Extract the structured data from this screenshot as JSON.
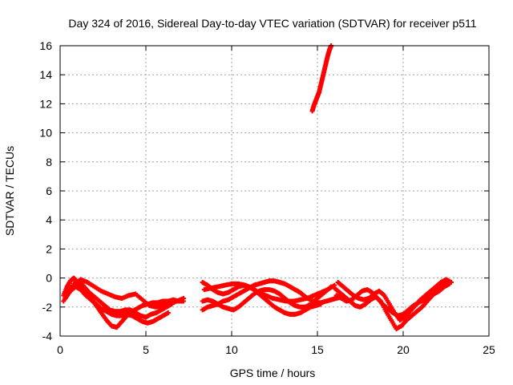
{
  "chart_data": {
    "type": "scatter",
    "title": "Day 324 of 2016, Sidereal Day-to-day VTEC variation (SDTVAR) for receiver p511",
    "xlabel": "GPS time / hours",
    "ylabel": "SDTVAR / TECUs",
    "xlim": [
      0,
      25
    ],
    "ylim": [
      -4,
      16
    ],
    "xticks": [
      "0",
      "5",
      "10",
      "15",
      "20",
      "25"
    ],
    "yticks": [
      "-4",
      "-2",
      "0",
      "2",
      "4",
      "6",
      "8",
      "10",
      "12",
      "14",
      "16"
    ],
    "grid": true,
    "marker_color": "#ff0000",
    "marker": "+",
    "series": [
      {
        "name": "",
        "x": [
          0.2,
          0.4,
          0.6,
          0.8,
          1.0,
          1.2,
          1.5,
          1.8,
          2.1,
          2.4,
          2.7,
          3.0,
          3.3,
          3.6,
          3.9,
          4.2,
          4.5,
          4.8,
          5.1,
          5.4,
          5.7,
          6.0,
          6.3,
          6.6,
          6.9,
          7.2
        ],
        "y": [
          -1.2,
          -0.6,
          -0.2,
          0.0,
          -0.3,
          -0.6,
          -0.9,
          -1.4,
          -1.9,
          -2.4,
          -2.9,
          -3.3,
          -3.4,
          -3.0,
          -2.6,
          -2.3,
          -2.1,
          -1.9,
          -1.8,
          -1.7,
          -1.7,
          -1.6,
          -1.6,
          -1.5,
          -1.6,
          -1.6
        ]
      },
      {
        "name": "",
        "x": [
          0.2,
          0.5,
          0.8,
          1.1,
          1.4,
          1.7,
          2.0,
          2.3,
          2.6,
          2.9,
          3.2,
          3.5,
          3.8,
          4.1,
          4.4,
          4.7,
          5.0,
          5.3,
          5.6,
          5.9,
          6.2,
          6.5
        ],
        "y": [
          -1.6,
          -1.0,
          -0.5,
          -0.2,
          -0.6,
          -1.0,
          -1.3,
          -1.6,
          -1.9,
          -2.2,
          -2.3,
          -2.3,
          -2.2,
          -2.2,
          -2.4,
          -2.6,
          -2.7,
          -2.5,
          -2.4,
          -2.2,
          -2.0,
          -1.8
        ]
      },
      {
        "name": "",
        "x": [
          0.3,
          0.6,
          0.9,
          1.2,
          1.5,
          1.8,
          2.1,
          2.4,
          2.7,
          3.0,
          3.3,
          3.6,
          3.9,
          4.2,
          4.5,
          4.8,
          5.1,
          5.4,
          5.7,
          6.0,
          6.3
        ],
        "y": [
          -1.4,
          -0.9,
          -0.6,
          -0.8,
          -1.2,
          -1.5,
          -1.8,
          -2.1,
          -2.3,
          -2.5,
          -2.6,
          -2.6,
          -2.5,
          -2.6,
          -2.8,
          -3.0,
          -3.1,
          -3.0,
          -2.8,
          -2.6,
          -2.4
        ]
      },
      {
        "name": "",
        "x": [
          0.4,
          0.8,
          1.2,
          1.6,
          2.0,
          2.4,
          2.8,
          3.2,
          3.6,
          4.0,
          4.4,
          4.8,
          5.2,
          5.6,
          6.0,
          6.4,
          6.8,
          7.2
        ],
        "y": [
          -1.0,
          -0.4,
          -0.1,
          -0.3,
          -0.6,
          -0.9,
          -1.1,
          -1.3,
          -1.4,
          -1.2,
          -1.1,
          -1.5,
          -1.9,
          -2.0,
          -1.9,
          -1.8,
          -1.6,
          -1.4
        ]
      },
      {
        "name": "",
        "x": [
          8.3,
          8.6,
          8.9,
          9.2,
          9.5,
          9.8,
          10.1,
          10.4,
          10.7,
          11.0,
          11.3,
          11.6,
          11.9,
          12.2,
          12.5,
          12.8,
          13.1,
          13.4,
          13.7,
          14.0,
          14.3,
          14.6,
          14.9,
          15.2,
          15.5,
          15.8,
          16.1,
          16.4
        ],
        "y": [
          -2.2,
          -2.0,
          -1.9,
          -1.8,
          -1.6,
          -1.5,
          -1.3,
          -1.1,
          -0.9,
          -0.7,
          -0.5,
          -0.4,
          -0.3,
          -0.2,
          -0.2,
          -0.3,
          -0.4,
          -0.6,
          -0.8,
          -1.0,
          -1.3,
          -1.5,
          -1.7,
          -1.7,
          -1.6,
          -1.5,
          -1.4,
          -1.3
        ]
      },
      {
        "name": "",
        "x": [
          8.3,
          8.6,
          8.9,
          9.2,
          9.5,
          9.8,
          10.1,
          10.4,
          10.7,
          11.0,
          11.3,
          11.6,
          11.9,
          12.2,
          12.5,
          12.8,
          13.1,
          13.4,
          13.7,
          14.0,
          14.3,
          14.6,
          14.9,
          15.2,
          15.5,
          15.8
        ],
        "y": [
          -1.6,
          -1.5,
          -1.6,
          -1.8,
          -2.0,
          -2.1,
          -2.2,
          -2.0,
          -1.7,
          -1.4,
          -1.1,
          -0.9,
          -0.8,
          -0.8,
          -0.9,
          -1.1,
          -1.4,
          -1.7,
          -1.9,
          -2.0,
          -2.0,
          -1.8,
          -1.5,
          -1.2,
          -0.9,
          -0.6
        ]
      },
      {
        "name": "",
        "x": [
          8.3,
          8.6,
          8.9,
          9.2,
          9.5,
          9.8,
          10.1,
          10.4,
          10.7,
          11.0,
          11.3,
          11.6,
          11.9,
          12.2,
          12.5,
          12.8,
          13.1,
          13.4,
          13.7,
          14.0,
          14.3,
          14.6,
          14.9,
          15.2
        ],
        "y": [
          -0.3,
          -0.5,
          -0.8,
          -1.0,
          -1.1,
          -1.0,
          -0.8,
          -0.6,
          -0.5,
          -0.6,
          -0.8,
          -1.1,
          -1.4,
          -1.7,
          -2.0,
          -2.2,
          -2.4,
          -2.5,
          -2.5,
          -2.4,
          -2.2,
          -2.0,
          -1.9,
          -1.8
        ]
      },
      {
        "name": "",
        "x": [
          8.4,
          8.8,
          9.2,
          9.6,
          10.0,
          10.4,
          10.8,
          11.2,
          11.6,
          12.0,
          12.4,
          12.8,
          13.2,
          13.6,
          14.0,
          14.4,
          14.8,
          15.2,
          15.6,
          16.0
        ],
        "y": [
          -0.8,
          -0.7,
          -0.6,
          -0.5,
          -0.4,
          -0.4,
          -0.5,
          -0.7,
          -1.0,
          -1.2,
          -1.4,
          -1.5,
          -1.6,
          -1.6,
          -1.5,
          -1.4,
          -1.2,
          -1.0,
          -0.8,
          -0.5
        ]
      },
      {
        "name": "",
        "x": [
          16.0,
          16.3,
          16.6,
          16.9,
          17.2,
          17.5,
          17.8,
          18.1,
          18.4,
          18.7,
          19.0,
          19.3,
          19.6,
          19.9,
          20.2,
          20.5,
          20.8,
          21.1,
          21.4,
          21.7,
          22.0,
          22.3,
          22.6
        ],
        "y": [
          -0.7,
          -1.0,
          -1.3,
          -1.6,
          -1.9,
          -2.0,
          -1.8,
          -1.5,
          -1.3,
          -1.6,
          -2.3,
          -2.9,
          -3.5,
          -3.3,
          -2.9,
          -2.6,
          -2.3,
          -2.0,
          -1.6,
          -1.2,
          -0.8,
          -0.4,
          -0.2
        ]
      },
      {
        "name": "",
        "x": [
          16.1,
          16.4,
          16.7,
          17.0,
          17.3,
          17.6,
          17.9,
          18.2,
          18.5,
          18.8,
          19.1,
          19.4,
          19.7,
          20.0,
          20.3,
          20.6,
          20.9,
          21.2,
          21.5,
          21.8,
          22.1,
          22.4,
          22.7
        ],
        "y": [
          -1.2,
          -1.4,
          -1.6,
          -1.5,
          -1.2,
          -0.9,
          -0.8,
          -1.0,
          -1.4,
          -1.8,
          -2.1,
          -2.4,
          -2.6,
          -2.5,
          -2.2,
          -1.9,
          -1.7,
          -1.5,
          -1.3,
          -1.1,
          -0.9,
          -0.6,
          -0.4
        ]
      },
      {
        "name": "",
        "x": [
          16.2,
          16.5,
          16.8,
          17.1,
          17.4,
          17.7,
          18.0,
          18.3,
          18.6,
          18.9,
          19.2,
          19.5,
          19.8,
          20.1,
          20.4,
          20.7,
          21.0,
          21.3,
          21.6,
          21.9,
          22.2,
          22.5,
          22.8
        ],
        "y": [
          -0.3,
          -0.6,
          -0.9,
          -1.2,
          -1.4,
          -1.5,
          -1.4,
          -1.1,
          -0.9,
          -1.2,
          -1.8,
          -2.4,
          -2.9,
          -2.7,
          -2.3,
          -1.9,
          -1.5,
          -1.2,
          -0.9,
          -0.6,
          -0.3,
          -0.1,
          -0.3
        ]
      },
      {
        "name": "",
        "x": [
          14.7,
          14.8,
          14.9,
          15.0,
          15.1,
          15.2,
          15.3,
          15.4,
          15.5,
          15.6,
          15.7,
          15.8
        ],
        "y": [
          11.5,
          11.9,
          12.2,
          12.5,
          12.8,
          13.3,
          13.8,
          14.3,
          14.8,
          15.3,
          15.7,
          16.0
        ]
      }
    ]
  }
}
